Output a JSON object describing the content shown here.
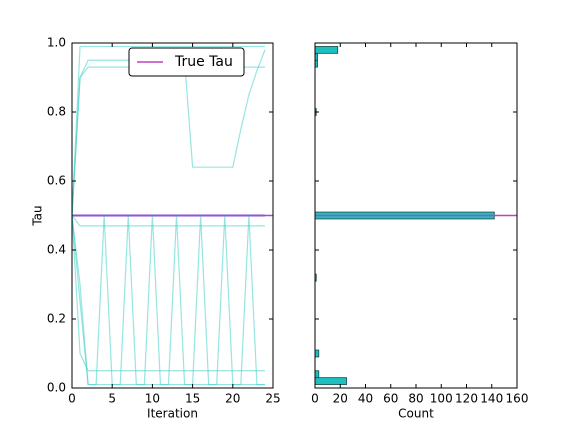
{
  "chart_data": [
    {
      "type": "line",
      "xlabel": "Iteration",
      "ylabel": "Tau",
      "xlim": [
        0,
        25
      ],
      "xticks": [
        0,
        5,
        10,
        15,
        20,
        25
      ],
      "ylim": [
        0,
        1
      ],
      "yticks": [
        {
          "value": 0,
          "label": "0.0"
        },
        0.2,
        0.4,
        0.6,
        0.8,
        {
          "value": 1,
          "label": "1.0"
        }
      ],
      "x": [
        0,
        1,
        2,
        3,
        4,
        5,
        6,
        7,
        8,
        9,
        10,
        11,
        12,
        13,
        14,
        15,
        16,
        17,
        18,
        19,
        20,
        21,
        22,
        23,
        24
      ],
      "series": [
        {
          "color": "#3b5bdb",
          "values": [
            0.5,
            0.5,
            0.5,
            0.5,
            0.5,
            0.5,
            0.5,
            0.5,
            0.5,
            0.5,
            0.5,
            0.5,
            0.5,
            0.5,
            0.5,
            0.5,
            0.5,
            0.5,
            0.5,
            0.5,
            0.5,
            0.5,
            0.5,
            0.5,
            0.5
          ]
        },
        {
          "color": "#40d0c8",
          "values": [
            0.5,
            0.99,
            0.99,
            0.99,
            0.99,
            0.99,
            0.99,
            0.99,
            0.99,
            0.99,
            0.99,
            0.99,
            0.99,
            0.99,
            0.99,
            0.99,
            0.99,
            0.99,
            0.99,
            0.99,
            0.99,
            0.99,
            0.99,
            0.99,
            0.99
          ]
        },
        {
          "color": "#40d0c8",
          "values": [
            0.5,
            0.3,
            0.01,
            0.01,
            0.01,
            0.01,
            0.01,
            0.01,
            0.01,
            0.01,
            0.01,
            0.01,
            0.01,
            0.01,
            0.01,
            0.01,
            0.01,
            0.01,
            0.01,
            0.01,
            0.01,
            0.01,
            0.01,
            0.01,
            0.01
          ]
        },
        {
          "color": "#40d0c8",
          "values": [
            0.5,
            0.25,
            0.01,
            0.01,
            0.5,
            0.01,
            0.01,
            0.5,
            0.01,
            0.01,
            0.5,
            0.01,
            0.01,
            0.5,
            0.01,
            0.01,
            0.5,
            0.01,
            0.01,
            0.5,
            0.01,
            0.01,
            0.5,
            0.01,
            0.01
          ]
        },
        {
          "color": "#40d0c8",
          "values": [
            0.5,
            0.9,
            0.95,
            0.95,
            0.95,
            0.95,
            0.95,
            0.95,
            0.95,
            0.95,
            0.95,
            0.95,
            0.95,
            0.95,
            0.95,
            0.64,
            0.64,
            0.64,
            0.64,
            0.64,
            0.64,
            0.75,
            0.85,
            0.92,
            0.98
          ]
        },
        {
          "color": "#40d0c8",
          "values": [
            0.5,
            0.47,
            0.47,
            0.47,
            0.47,
            0.47,
            0.47,
            0.47,
            0.47,
            0.47,
            0.47,
            0.47,
            0.47,
            0.47,
            0.47,
            0.47,
            0.47,
            0.47,
            0.47,
            0.47,
            0.47,
            0.47,
            0.47,
            0.47,
            0.47
          ]
        },
        {
          "color": "#40d0c8",
          "values": [
            0.5,
            0.9,
            0.93,
            0.93,
            0.93,
            0.93,
            0.93,
            0.93,
            0.93,
            0.93,
            0.93,
            0.93,
            0.93,
            0.93,
            0.93,
            0.93,
            0.93,
            0.93,
            0.93,
            0.93,
            0.93,
            0.93,
            0.93,
            0.93,
            0.93
          ]
        },
        {
          "color": "#40d0c8",
          "values": [
            0.5,
            0.1,
            0.05,
            0.05,
            0.05,
            0.05,
            0.05,
            0.05,
            0.05,
            0.05,
            0.05,
            0.05,
            0.05,
            0.05,
            0.05,
            0.05,
            0.05,
            0.05,
            0.05,
            0.05,
            0.05,
            0.05,
            0.05,
            0.05,
            0.05
          ]
        }
      ],
      "reference": {
        "name": "True Tau",
        "value": 0.5,
        "color": "#c040c0"
      },
      "legend": "upper center"
    },
    {
      "type": "histogram",
      "orientation": "horizontal",
      "xlabel": "Count",
      "xlim": [
        0,
        160
      ],
      "xticks": [
        0,
        20,
        40,
        60,
        80,
        100,
        120,
        140,
        160
      ],
      "ylim": [
        0,
        1
      ],
      "yticks": [
        0,
        0.2,
        0.4,
        0.6,
        0.8,
        1
      ],
      "ytick_labels": false,
      "color": "#20bfbf",
      "bins": [
        0.01,
        0.03,
        0.05,
        0.07,
        0.09,
        0.11,
        0.13,
        0.15,
        0.17,
        0.19,
        0.21,
        0.23,
        0.25,
        0.27,
        0.29,
        0.31,
        0.33,
        0.35,
        0.37,
        0.39,
        0.41,
        0.43,
        0.45,
        0.47,
        0.49,
        0.51,
        0.53,
        0.55,
        0.57,
        0.59,
        0.61,
        0.63,
        0.65,
        0.67,
        0.69,
        0.71,
        0.73,
        0.75,
        0.77,
        0.79,
        0.81,
        0.83,
        0.85,
        0.87,
        0.89,
        0.91,
        0.93,
        0.95,
        0.97,
        0.99
      ],
      "counts": [
        25,
        3,
        0,
        0,
        3,
        0,
        0,
        0,
        0,
        0,
        0,
        0,
        0,
        0,
        0,
        1,
        0,
        0,
        0,
        0,
        0,
        0,
        0,
        0,
        142,
        0,
        0,
        0,
        0,
        0,
        0,
        0,
        0,
        0,
        0,
        0,
        0,
        0,
        0,
        1,
        0,
        0,
        0,
        0,
        0,
        0,
        2,
        2,
        18
      ]
    }
  ]
}
